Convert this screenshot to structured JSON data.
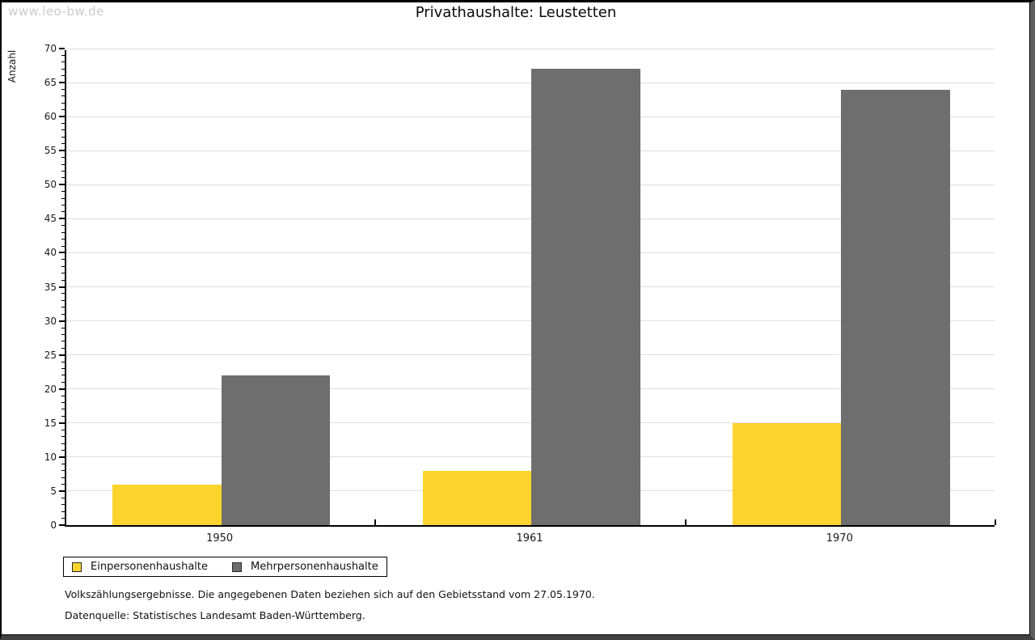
{
  "watermark": "www.leo-bw.de",
  "title": "Privathaushalte: Leustetten",
  "chart_data": {
    "type": "bar",
    "title": "Privathaushalte: Leustetten",
    "ylabel": "Anzahl",
    "xlabel": "",
    "categories": [
      "1950",
      "1961",
      "1970"
    ],
    "series": [
      {
        "name": "Einpersonenhaushalte",
        "color": "#fcd42d",
        "values": [
          6,
          8,
          15
        ]
      },
      {
        "name": "Mehrpersonenhaushalte",
        "color": "#6e6e6e",
        "values": [
          22,
          67,
          64
        ]
      }
    ],
    "ylim": [
      0,
      70
    ],
    "ytick_step": 5,
    "yminor_step": 1,
    "grid": true,
    "legend_position": "bottom-left"
  },
  "footnotes": {
    "line1": "Volkszählungsergebnisse. Die angegebenen Daten beziehen sich auf den Gebietsstand vom 27.05.1970.",
    "line2": "Datenquelle: Statistisches Landesamt Baden-Württemberg."
  },
  "colors": {
    "bar_yellow": "#fcd42d",
    "bar_gray": "#6e6e6e",
    "gridline": "#dedede",
    "axis": "#000000",
    "watermark": "#cbcbcb"
  }
}
